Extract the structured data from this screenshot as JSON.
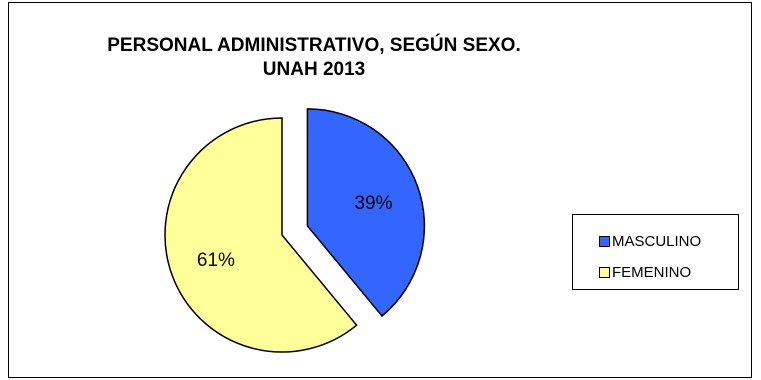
{
  "chart_data": {
    "type": "pie",
    "title": [
      "PERSONAL ADMINISTRATIVO, SEGÚN SEXO.",
      "UNAH 2013"
    ],
    "slices": [
      {
        "name": "MASCULINO",
        "value": 39,
        "label": "39%",
        "color": "#3366FF",
        "exploded": true
      },
      {
        "name": "FEMENINO",
        "value": 61,
        "label": "61%",
        "color": "#FFFF99",
        "exploded": false
      }
    ],
    "legend_position": "right"
  }
}
